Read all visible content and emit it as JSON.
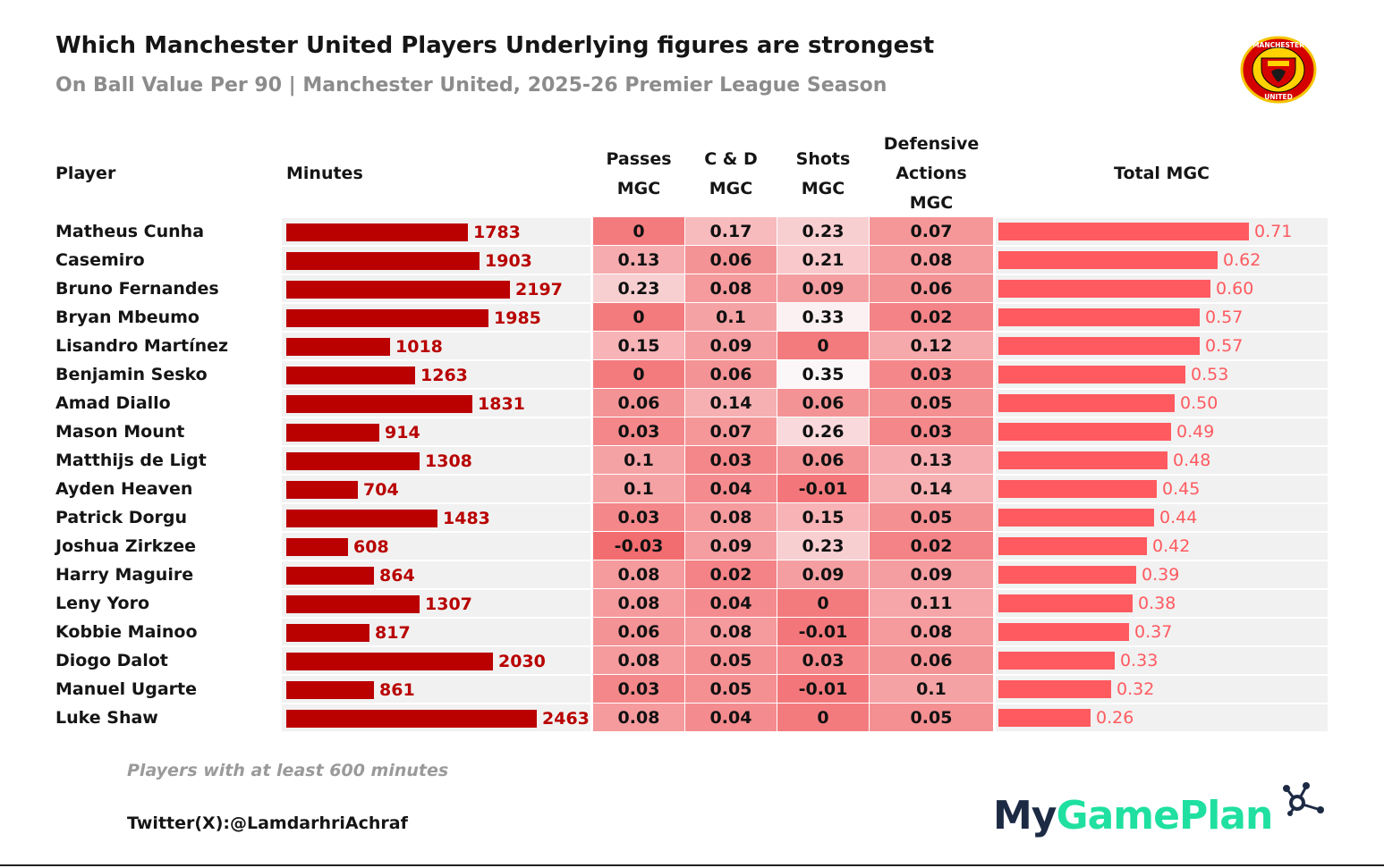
{
  "title": "Which Manchester United Players Underlying figures are strongest",
  "subtitle": "On Ball Value Per 90 | Manchester United, 2025-26 Premier League Season",
  "logo": {
    "icon": "manchester-united-crest-icon",
    "text_top": "MANCHESTER",
    "text_bottom": "UNITED"
  },
  "headers": {
    "player": "Player",
    "minutes": "Minutes",
    "passes": [
      "Passes",
      "MGC"
    ],
    "cd": [
      "C & D",
      "MGC"
    ],
    "shots": [
      "Shots",
      "MGC"
    ],
    "defensive": [
      "Defensive",
      "Actions",
      "MGC"
    ],
    "total": "Total MGC"
  },
  "chart_data": {
    "type": "table",
    "title": "Which Manchester United Players Underlying figures are strongest",
    "subtitle": "On Ball Value Per 90 | Manchester United, 2025-26 Premier League Season",
    "columns": [
      "Player",
      "Minutes",
      "Passes MGC",
      "C & D MGC",
      "Shots MGC",
      "Defensive Actions MGC",
      "Total MGC"
    ],
    "minutes_max": 2463,
    "total_max": 0.71,
    "rows": [
      {
        "player": "Matheus Cunha",
        "minutes": 1783,
        "passes": "0",
        "cd": "0.17",
        "shots": "0.23",
        "def": "0.07",
        "total": "0.71"
      },
      {
        "player": "Casemiro",
        "minutes": 1903,
        "passes": "0.13",
        "cd": "0.06",
        "shots": "0.21",
        "def": "0.08",
        "total": "0.62"
      },
      {
        "player": "Bruno Fernandes",
        "minutes": 2197,
        "passes": "0.23",
        "cd": "0.08",
        "shots": "0.09",
        "def": "0.06",
        "total": "0.60"
      },
      {
        "player": "Bryan Mbeumo",
        "minutes": 1985,
        "passes": "0",
        "cd": "0.1",
        "shots": "0.33",
        "def": "0.02",
        "total": "0.57"
      },
      {
        "player": "Lisandro Martínez",
        "minutes": 1018,
        "passes": "0.15",
        "cd": "0.09",
        "shots": "0",
        "def": "0.12",
        "total": "0.57"
      },
      {
        "player": "Benjamin Sesko",
        "minutes": 1263,
        "passes": "0",
        "cd": "0.06",
        "shots": "0.35",
        "def": "0.03",
        "total": "0.53"
      },
      {
        "player": "Amad Diallo",
        "minutes": 1831,
        "passes": "0.06",
        "cd": "0.14",
        "shots": "0.06",
        "def": "0.05",
        "total": "0.50"
      },
      {
        "player": "Mason Mount",
        "minutes": 914,
        "passes": "0.03",
        "cd": "0.07",
        "shots": "0.26",
        "def": "0.03",
        "total": "0.49"
      },
      {
        "player": "Matthijs de Ligt",
        "minutes": 1308,
        "passes": "0.1",
        "cd": "0.03",
        "shots": "0.06",
        "def": "0.13",
        "total": "0.48"
      },
      {
        "player": "Ayden Heaven",
        "minutes": 704,
        "passes": "0.1",
        "cd": "0.04",
        "shots": "-0.01",
        "def": "0.14",
        "total": "0.45"
      },
      {
        "player": "Patrick Dorgu",
        "minutes": 1483,
        "passes": "0.03",
        "cd": "0.08",
        "shots": "0.15",
        "def": "0.05",
        "total": "0.44"
      },
      {
        "player": "Joshua Zirkzee",
        "minutes": 608,
        "passes": "-0.03",
        "cd": "0.09",
        "shots": "0.23",
        "def": "0.02",
        "total": "0.42"
      },
      {
        "player": "Harry Maguire",
        "minutes": 864,
        "passes": "0.08",
        "cd": "0.02",
        "shots": "0.09",
        "def": "0.09",
        "total": "0.39"
      },
      {
        "player": "Leny Yoro",
        "minutes": 1307,
        "passes": "0.08",
        "cd": "0.04",
        "shots": "0",
        "def": "0.11",
        "total": "0.38"
      },
      {
        "player": "Kobbie Mainoo",
        "minutes": 817,
        "passes": "0.06",
        "cd": "0.08",
        "shots": "-0.01",
        "def": "0.08",
        "total": "0.37"
      },
      {
        "player": "Diogo Dalot",
        "minutes": 2030,
        "passes": "0.08",
        "cd": "0.05",
        "shots": "0.03",
        "def": "0.06",
        "total": "0.33"
      },
      {
        "player": "Manuel Ugarte",
        "minutes": 861,
        "passes": "0.03",
        "cd": "0.05",
        "shots": "-0.01",
        "def": "0.1",
        "total": "0.32"
      },
      {
        "player": "Luke Shaw",
        "minutes": 2463,
        "passes": "0.08",
        "cd": "0.04",
        "shots": "0",
        "def": "0.05",
        "total": "0.26"
      }
    ]
  },
  "colors": {
    "minutes_bar": "#bb0000",
    "minutes_text": "#b80000",
    "total_bar": "#ff5a5f",
    "heat_low": "#f26d70",
    "heat_high": "#fbf7f9"
  },
  "footer": {
    "note": "Players with at least 600 minutes",
    "twitter": "Twitter(X):@LamdarhriAchraf",
    "brand_part1": "My",
    "brand_part2": "GamePlan",
    "brand_icon": "network-nodes-icon"
  }
}
